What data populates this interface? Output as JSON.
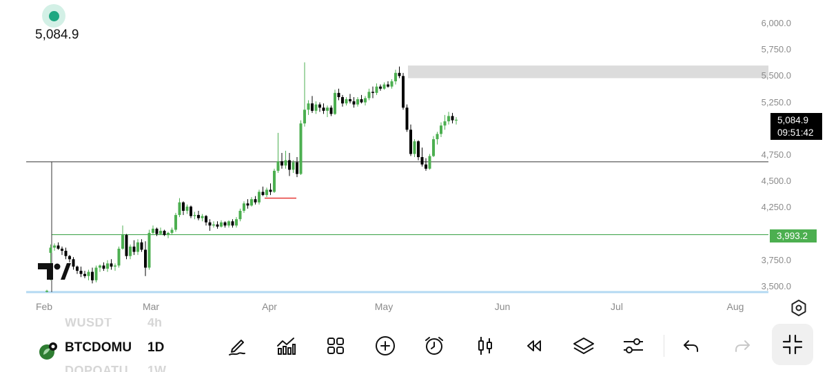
{
  "header": {
    "current_price": "5,084.9"
  },
  "price_axis": {
    "labels": [
      "6,000.0",
      "5,750.0",
      "5,500.0",
      "5,250.0",
      "4,750.0",
      "4,500.0",
      "4,250.0",
      "3,750.0",
      "3,500.0"
    ],
    "values": [
      6000,
      5750,
      5500,
      5250,
      4750,
      4500,
      4250,
      3750,
      3500
    ]
  },
  "time_axis": {
    "labels": [
      "Feb",
      "Mar",
      "Apr",
      "May",
      "Jun",
      "Jul",
      "Aug"
    ]
  },
  "last_price_tag": {
    "price": "5,084.9",
    "countdown": "09:51:42"
  },
  "level_tag": {
    "price": "3,993.2"
  },
  "toolbar": {
    "symbols": {
      "prev": "WUSDT",
      "current": "BTCDOMU",
      "next": "DOPOATU"
    },
    "intervals": {
      "prev": "4h",
      "current": "1D",
      "next": "1W"
    }
  },
  "colors": {
    "up": "#4caf50",
    "down": "#000000",
    "accent": "#1ea781",
    "zone": "#dcdcdc"
  },
  "chart_data": {
    "type": "candlestick",
    "ylim": [
      3450,
      6050
    ],
    "horizontal_lines": [
      4685,
      3993.2,
      3445
    ],
    "zone": [
      5480,
      5600
    ],
    "ohlc": [
      [
        3450,
        3470,
        3445,
        3460
      ],
      [
        3820,
        3900,
        3560,
        3870
      ],
      [
        3870,
        3910,
        3840,
        3890
      ],
      [
        3890,
        3920,
        3850,
        3860
      ],
      [
        3860,
        3880,
        3800,
        3840
      ],
      [
        3840,
        3870,
        3760,
        3790
      ],
      [
        3790,
        3800,
        3730,
        3760
      ],
      [
        3760,
        3780,
        3660,
        3690
      ],
      [
        3690,
        3700,
        3620,
        3650
      ],
      [
        3650,
        3690,
        3590,
        3620
      ],
      [
        3620,
        3650,
        3580,
        3600
      ],
      [
        3600,
        3660,
        3560,
        3640
      ],
      [
        3640,
        3680,
        3530,
        3560
      ],
      [
        3560,
        3700,
        3540,
        3680
      ],
      [
        3680,
        3710,
        3640,
        3700
      ],
      [
        3700,
        3730,
        3650,
        3670
      ],
      [
        3670,
        3750,
        3640,
        3720
      ],
      [
        3720,
        3760,
        3660,
        3690
      ],
      [
        3690,
        3720,
        3650,
        3700
      ],
      [
        3700,
        3880,
        3680,
        3860
      ],
      [
        3860,
        4080,
        3850,
        3990
      ],
      [
        3990,
        4000,
        3760,
        3790
      ],
      [
        3790,
        3900,
        3760,
        3880
      ],
      [
        3880,
        3940,
        3800,
        3830
      ],
      [
        3830,
        3950,
        3800,
        3920
      ],
      [
        3920,
        3950,
        3830,
        3850
      ],
      [
        3850,
        3930,
        3600,
        3680
      ],
      [
        3680,
        4040,
        3660,
        4010
      ],
      [
        4010,
        4080,
        3990,
        4050
      ],
      [
        4050,
        4060,
        3980,
        4000
      ],
      [
        4000,
        4060,
        3990,
        4030
      ],
      [
        4030,
        4040,
        3980,
        3990
      ],
      [
        3990,
        4020,
        3960,
        4010
      ],
      [
        4010,
        4060,
        3990,
        4040
      ],
      [
        4040,
        4200,
        4020,
        4180
      ],
      [
        4180,
        4340,
        4160,
        4300
      ],
      [
        4300,
        4310,
        4180,
        4220
      ],
      [
        4220,
        4280,
        4190,
        4260
      ],
      [
        4260,
        4270,
        4150,
        4170
      ],
      [
        4170,
        4210,
        4140,
        4180
      ],
      [
        4180,
        4220,
        4130,
        4150
      ],
      [
        4150,
        4190,
        4120,
        4170
      ],
      [
        4170,
        4180,
        4080,
        4110
      ],
      [
        4110,
        4140,
        4030,
        4080
      ],
      [
        4080,
        4120,
        4060,
        4090
      ],
      [
        4090,
        4120,
        4050,
        4070
      ],
      [
        4070,
        4130,
        4060,
        4110
      ],
      [
        4110,
        4120,
        4060,
        4080
      ],
      [
        4080,
        4130,
        4060,
        4120
      ],
      [
        4120,
        4140,
        4060,
        4080
      ],
      [
        4080,
        4160,
        4060,
        4140
      ],
      [
        4140,
        4240,
        4120,
        4220
      ],
      [
        4220,
        4310,
        4200,
        4290
      ],
      [
        4290,
        4330,
        4240,
        4270
      ],
      [
        4270,
        4350,
        4260,
        4330
      ],
      [
        4330,
        4360,
        4280,
        4300
      ],
      [
        4300,
        4420,
        4280,
        4400
      ],
      [
        4400,
        4450,
        4360,
        4370
      ],
      [
        4370,
        4440,
        4350,
        4420
      ],
      [
        4420,
        4480,
        4370,
        4400
      ],
      [
        4400,
        4620,
        4390,
        4600
      ],
      [
        4600,
        4960,
        4580,
        4690
      ],
      [
        4690,
        4770,
        4620,
        4650
      ],
      [
        4650,
        4790,
        4620,
        4700
      ],
      [
        4700,
        4770,
        4550,
        4610
      ],
      [
        4610,
        4700,
        4580,
        4680
      ],
      [
        4680,
        4730,
        4540,
        4570
      ],
      [
        4570,
        5080,
        4560,
        5050
      ],
      [
        5050,
        5630,
        5020,
        5180
      ],
      [
        5180,
        5270,
        5130,
        5240
      ],
      [
        5240,
        5310,
        5150,
        5170
      ],
      [
        5170,
        5260,
        5140,
        5230
      ],
      [
        5230,
        5250,
        5160,
        5200
      ],
      [
        5200,
        5240,
        5140,
        5170
      ],
      [
        5170,
        5220,
        5110,
        5200
      ],
      [
        5200,
        5220,
        5120,
        5140
      ],
      [
        5140,
        5370,
        5130,
        5340
      ],
      [
        5340,
        5380,
        5270,
        5300
      ],
      [
        5300,
        5320,
        5210,
        5240
      ],
      [
        5240,
        5300,
        5220,
        5280
      ],
      [
        5280,
        5330,
        5240,
        5260
      ],
      [
        5260,
        5300,
        5200,
        5230
      ],
      [
        5230,
        5300,
        5210,
        5280
      ],
      [
        5280,
        5320,
        5240,
        5250
      ],
      [
        5250,
        5310,
        5220,
        5290
      ],
      [
        5290,
        5380,
        5270,
        5350
      ],
      [
        5350,
        5400,
        5290,
        5340
      ],
      [
        5340,
        5430,
        5320,
        5400
      ],
      [
        5400,
        5420,
        5360,
        5380
      ],
      [
        5380,
        5440,
        5370,
        5420
      ],
      [
        5420,
        5450,
        5390,
        5400
      ],
      [
        5400,
        5470,
        5380,
        5450
      ],
      [
        5450,
        5560,
        5420,
        5530
      ],
      [
        5530,
        5590,
        5480,
        5500
      ],
      [
        5500,
        5530,
        5180,
        5200
      ],
      [
        5200,
        5230,
        4970,
        4990
      ],
      [
        4990,
        5040,
        4740,
        4760
      ],
      [
        4760,
        4900,
        4730,
        4880
      ],
      [
        4880,
        4890,
        4700,
        4730
      ],
      [
        4730,
        4820,
        4640,
        4660
      ],
      [
        4660,
        4720,
        4600,
        4620
      ],
      [
        4620,
        4760,
        4610,
        4740
      ],
      [
        4740,
        4930,
        4730,
        4900
      ],
      [
        4900,
        4970,
        4850,
        4950
      ],
      [
        4950,
        5060,
        4920,
        5030
      ],
      [
        5030,
        5130,
        4990,
        5070
      ],
      [
        5070,
        5160,
        5040,
        5120
      ],
      [
        5120,
        5150,
        5050,
        5080
      ],
      [
        5080,
        5110,
        5040,
        5085
      ]
    ]
  }
}
